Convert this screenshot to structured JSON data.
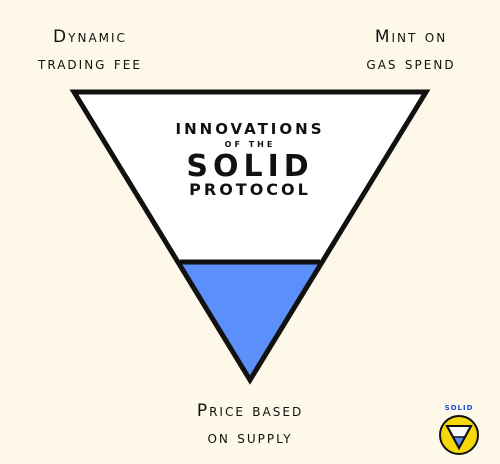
{
  "labels": {
    "top_left_line1": "Dynamic",
    "top_left_line2": "trading fee",
    "top_right_line1": "Mint on",
    "top_right_line2": "gas spend",
    "bottom_line1": "Price based",
    "bottom_line2": "on supply"
  },
  "title": {
    "line1": "INNOVATIONS",
    "line2": "OF THE",
    "line3": "SOLID",
    "line4": "PROTOCOL"
  },
  "logo": {
    "text": "SOLID"
  },
  "colors": {
    "background": "#fdf8e8",
    "triangle_fill": "#ffffff",
    "liquid_fill": "#5b8ff9",
    "outline": "#111111",
    "logo_circle": "#f5d90a",
    "logo_text": "#1a4fd8"
  }
}
